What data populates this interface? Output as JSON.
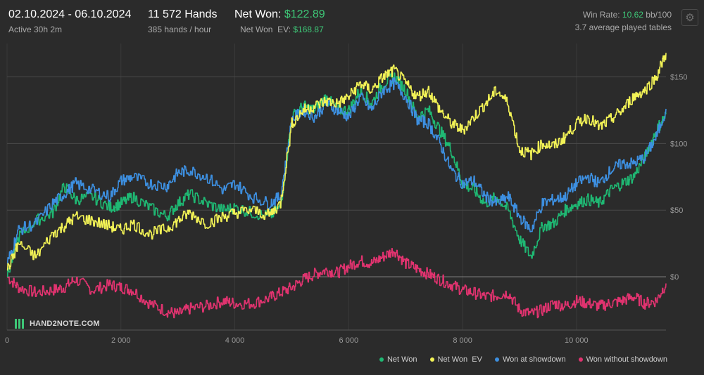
{
  "header": {
    "date_range": "02.10.2024 - 06.10.2024",
    "active": "Active 30h 2m",
    "hands": "11 572 Hands",
    "hands_per_hour": "385 hands / hour",
    "net_won_label": "Net Won:",
    "net_won_value": "$122.89",
    "net_won_ev_label": "Net Won  EV:",
    "net_won_ev_value": "$168.87",
    "win_rate_label": "Win Rate:",
    "win_rate_value": "10.62",
    "win_rate_unit": "bb/100",
    "tables": "3.7 average played tables"
  },
  "logo": {
    "text": "HAND2NOTE.COM"
  },
  "colors": {
    "net_won": "#1fb873",
    "net_won_ev": "#f2f256",
    "won_at_showdown": "#3d8fe0",
    "won_without_showdown": "#e0336f"
  },
  "chart_data": {
    "type": "line",
    "xlim": [
      0,
      11572
    ],
    "ylim": [
      -40,
      175
    ],
    "x_ticks": [
      0,
      2000,
      4000,
      6000,
      8000,
      10000
    ],
    "x_tick_labels": [
      "0",
      "2 000",
      "4 000",
      "6 000",
      "8 000",
      "10 000"
    ],
    "y_ticks": [
      0,
      50,
      100,
      150
    ],
    "y_tick_labels": [
      "$0",
      "$50",
      "$100",
      "$150"
    ],
    "y_axis_side": "right",
    "grid": true,
    "legend": "bottom-right",
    "x": [
      0,
      200,
      500,
      800,
      1000,
      1200,
      1500,
      1800,
      2000,
      2200,
      2500,
      2800,
      3000,
      3200,
      3500,
      3800,
      4000,
      4300,
      4600,
      4800,
      5000,
      5200,
      5400,
      5600,
      5800,
      6000,
      6200,
      6400,
      6600,
      6800,
      7000,
      7200,
      7400,
      7600,
      7800,
      8000,
      8200,
      8400,
      8600,
      8800,
      9000,
      9200,
      9400,
      9600,
      9800,
      10000,
      10200,
      10400,
      10600,
      10800,
      11000,
      11200,
      11400,
      11572
    ],
    "series": [
      {
        "name": "Net Won",
        "color_key": "net_won",
        "values": [
          0,
          30,
          42,
          48,
          68,
          58,
          60,
          52,
          55,
          60,
          52,
          45,
          55,
          62,
          55,
          50,
          52,
          48,
          45,
          52,
          120,
          128,
          125,
          135,
          125,
          125,
          140,
          130,
          145,
          150,
          140,
          120,
          125,
          110,
          95,
          70,
          65,
          55,
          60,
          50,
          28,
          15,
          38,
          40,
          50,
          55,
          58,
          55,
          65,
          70,
          75,
          90,
          110,
          122
        ]
      },
      {
        "name": "Net Won  EV",
        "color_key": "net_won_ev",
        "values": [
          5,
          25,
          15,
          32,
          38,
          45,
          42,
          38,
          35,
          40,
          32,
          36,
          42,
          48,
          40,
          45,
          48,
          50,
          46,
          55,
          115,
          125,
          128,
          132,
          130,
          135,
          145,
          140,
          150,
          155,
          145,
          135,
          140,
          125,
          115,
          110,
          120,
          130,
          140,
          130,
          95,
          92,
          100,
          98,
          105,
          115,
          120,
          112,
          118,
          125,
          135,
          140,
          150,
          168
        ]
      },
      {
        "name": "Won at showdown",
        "color_key": "won_at_showdown",
        "values": [
          10,
          35,
          40,
          55,
          62,
          70,
          65,
          60,
          72,
          75,
          70,
          68,
          78,
          80,
          75,
          65,
          70,
          60,
          55,
          60,
          118,
          125,
          120,
          130,
          125,
          120,
          135,
          125,
          140,
          145,
          135,
          118,
          115,
          100,
          80,
          70,
          72,
          60,
          55,
          60,
          45,
          35,
          55,
          58,
          60,
          70,
          75,
          70,
          80,
          85,
          85,
          90,
          105,
          126
        ]
      },
      {
        "name": "Won without showdown",
        "color_key": "won_without_showdown",
        "values": [
          0,
          -8,
          -12,
          -10,
          -8,
          -2,
          -10,
          -6,
          -8,
          -10,
          -20,
          -26,
          -28,
          -24,
          -22,
          -18,
          -20,
          -20,
          -16,
          -12,
          -8,
          -2,
          2,
          5,
          3,
          8,
          12,
          10,
          15,
          20,
          10,
          6,
          2,
          -2,
          -6,
          -10,
          -12,
          -15,
          -14,
          -12,
          -25,
          -28,
          -25,
          -20,
          -22,
          -18,
          -20,
          -22,
          -20,
          -18,
          -15,
          -20,
          -18,
          -5
        ]
      }
    ]
  }
}
